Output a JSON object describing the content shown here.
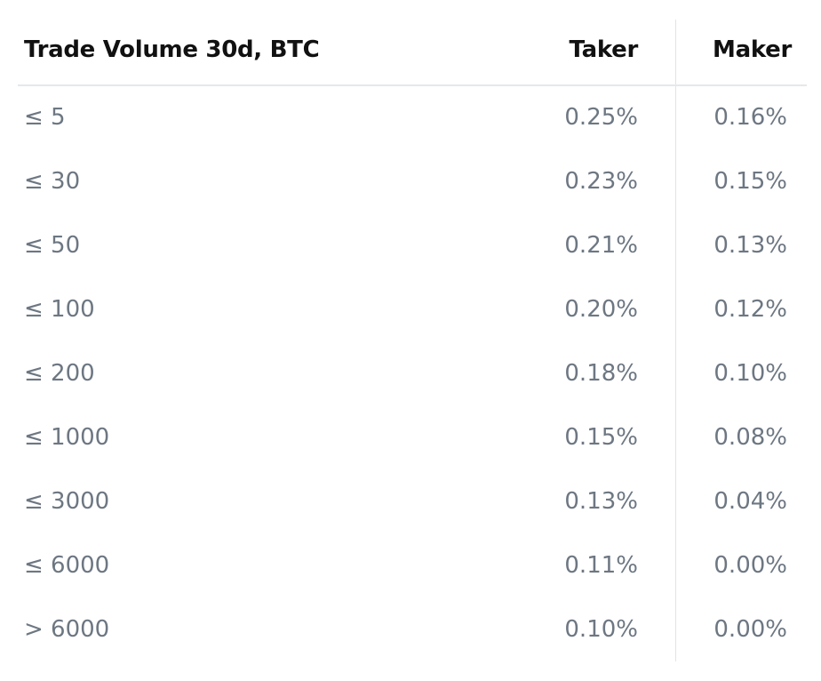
{
  "table": {
    "headers": {
      "volume": "Trade Volume 30d, BTC",
      "taker": "Taker",
      "maker": "Maker"
    },
    "rows": [
      {
        "volume": "≤ 5",
        "taker": "0.25%",
        "maker": "0.16%"
      },
      {
        "volume": "≤ 30",
        "taker": "0.23%",
        "maker": "0.15%"
      },
      {
        "volume": "≤ 50",
        "taker": "0.21%",
        "maker": "0.13%"
      },
      {
        "volume": "≤ 100",
        "taker": "0.20%",
        "maker": "0.12%"
      },
      {
        "volume": "≤ 200",
        "taker": "0.18%",
        "maker": "0.10%"
      },
      {
        "volume": "≤ 1000",
        "taker": "0.15%",
        "maker": "0.08%"
      },
      {
        "volume": "≤ 3000",
        "taker": "0.13%",
        "maker": "0.04%"
      },
      {
        "volume": "≤ 6000",
        "taker": "0.11%",
        "maker": "0.00%"
      },
      {
        "volume": "> 6000",
        "taker": "0.10%",
        "maker": "0.00%"
      }
    ]
  }
}
